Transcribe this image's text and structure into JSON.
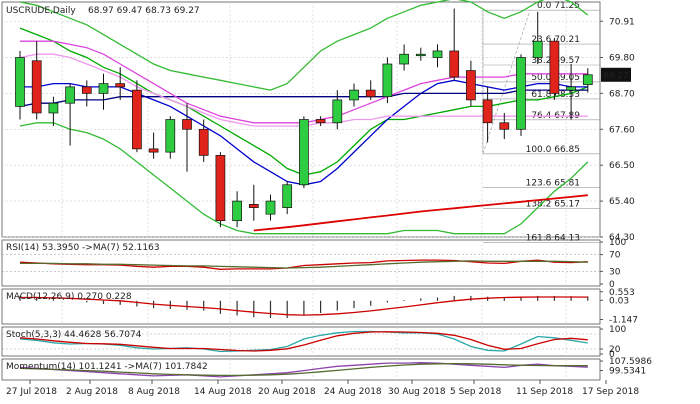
{
  "chart_data": {
    "type": "candlestick",
    "symbol": "USCRUDE",
    "timeframe": "Daily",
    "ohlc_header": [
      "68.97",
      "69.47",
      "68.73",
      "69.27"
    ],
    "last_price": 69.27,
    "price_range": [
      64.3,
      71.5
    ],
    "price_ticks": [
      70.91,
      69.8,
      68.7,
      67.6,
      66.5,
      65.4,
      64.3
    ],
    "x_labels": [
      "27 Jul 2018",
      "2 Aug 2018",
      "8 Aug 2018",
      "14 Aug 2018",
      "20 Aug 2018",
      "24 Aug 2018",
      "30 Aug 2018",
      "5 Sep 2018",
      "11 Sep 2018",
      "17 Sep 2018"
    ],
    "candles": [
      {
        "o": 68.3,
        "h": 70.0,
        "l": 67.9,
        "c": 69.8
      },
      {
        "o": 69.7,
        "h": 70.3,
        "l": 67.9,
        "c": 68.1
      },
      {
        "o": 68.1,
        "h": 68.6,
        "l": 67.7,
        "c": 68.4
      },
      {
        "o": 68.4,
        "h": 69.0,
        "l": 67.1,
        "c": 68.9
      },
      {
        "o": 68.9,
        "h": 69.1,
        "l": 68.3,
        "c": 68.7
      },
      {
        "o": 68.7,
        "h": 69.3,
        "l": 68.2,
        "c": 69.0
      },
      {
        "o": 69.0,
        "h": 69.5,
        "l": 68.5,
        "c": 68.9
      },
      {
        "o": 68.8,
        "h": 69.1,
        "l": 66.9,
        "c": 67.0
      },
      {
        "o": 67.0,
        "h": 67.5,
        "l": 66.7,
        "c": 66.9
      },
      {
        "o": 66.9,
        "h": 68.0,
        "l": 66.7,
        "c": 67.9
      },
      {
        "o": 67.9,
        "h": 68.4,
        "l": 66.3,
        "c": 67.6
      },
      {
        "o": 67.6,
        "h": 67.9,
        "l": 66.6,
        "c": 66.8
      },
      {
        "o": 66.8,
        "h": 66.9,
        "l": 64.6,
        "c": 64.8
      },
      {
        "o": 64.8,
        "h": 65.7,
        "l": 64.6,
        "c": 65.4
      },
      {
        "o": 65.3,
        "h": 65.9,
        "l": 64.8,
        "c": 65.2
      },
      {
        "o": 65.0,
        "h": 65.6,
        "l": 64.8,
        "c": 65.4
      },
      {
        "o": 65.2,
        "h": 66.0,
        "l": 65.0,
        "c": 65.9
      },
      {
        "o": 65.9,
        "h": 68.0,
        "l": 65.8,
        "c": 67.9
      },
      {
        "o": 67.9,
        "h": 68.0,
        "l": 67.7,
        "c": 67.8
      },
      {
        "o": 67.8,
        "h": 68.8,
        "l": 67.6,
        "c": 68.5
      },
      {
        "o": 68.5,
        "h": 69.0,
        "l": 68.3,
        "c": 68.8
      },
      {
        "o": 68.8,
        "h": 69.1,
        "l": 68.5,
        "c": 68.6
      },
      {
        "o": 68.6,
        "h": 69.8,
        "l": 68.4,
        "c": 69.6
      },
      {
        "o": 69.6,
        "h": 70.2,
        "l": 69.4,
        "c": 69.9
      },
      {
        "o": 69.9,
        "h": 70.1,
        "l": 69.7,
        "c": 69.9
      },
      {
        "o": 69.8,
        "h": 70.2,
        "l": 69.5,
        "c": 70.0
      },
      {
        "o": 70.0,
        "h": 71.3,
        "l": 69.1,
        "c": 69.2
      },
      {
        "o": 69.4,
        "h": 69.7,
        "l": 68.3,
        "c": 68.5
      },
      {
        "o": 68.5,
        "h": 68.9,
        "l": 67.2,
        "c": 67.8
      },
      {
        "o": 67.8,
        "h": 68.1,
        "l": 67.3,
        "c": 67.6
      },
      {
        "o": 67.6,
        "h": 69.9,
        "l": 67.4,
        "c": 69.8
      },
      {
        "o": 69.8,
        "h": 71.2,
        "l": 69.6,
        "c": 70.3
      },
      {
        "o": 70.3,
        "h": 70.4,
        "l": 68.5,
        "c": 68.7
      },
      {
        "o": 68.8,
        "h": 69.6,
        "l": 67.9,
        "c": 68.9
      },
      {
        "o": 68.97,
        "h": 69.47,
        "l": 68.73,
        "c": 69.27
      }
    ],
    "overlays": [
      {
        "color": "#00aa00",
        "values": [
          70.7,
          70.5,
          70.3,
          70.0,
          69.8,
          69.5,
          69.3,
          69.0,
          68.7,
          68.5,
          68.3,
          68.0,
          67.7,
          67.4,
          67.1,
          66.8,
          66.4,
          66.2,
          66.3,
          66.6,
          67.1,
          67.6,
          67.9,
          67.9,
          68.0,
          68.1,
          68.2,
          68.3,
          68.3,
          68.4,
          68.5,
          68.5,
          68.6,
          68.7,
          68.9
        ]
      },
      {
        "color": "#0000cc",
        "values": [
          68.9,
          68.9,
          69.0,
          69.0,
          68.9,
          68.9,
          68.9,
          68.7,
          68.5,
          68.3,
          68.0,
          67.7,
          67.4,
          67.0,
          66.6,
          66.3,
          66.0,
          65.9,
          66.0,
          66.4,
          66.9,
          67.4,
          67.9,
          68.3,
          68.7,
          69.0,
          69.1,
          69.0,
          68.9,
          68.8,
          68.9,
          69.0,
          69.0,
          68.9,
          68.9
        ]
      },
      {
        "color": "#000080",
        "values": [
          68.3,
          68.4,
          68.4,
          68.5,
          68.5,
          68.5,
          68.6,
          68.6,
          68.6,
          68.6,
          68.6,
          68.6,
          68.6,
          68.6,
          68.6,
          68.6,
          68.6,
          68.6,
          68.6,
          68.6,
          68.6,
          68.6,
          68.6,
          68.7,
          68.7,
          68.7,
          68.7,
          68.7,
          68.7,
          68.7,
          68.8,
          68.8,
          68.8,
          68.8,
          68.8
        ]
      },
      {
        "color": "#dd44dd",
        "values": [
          70.3,
          70.3,
          70.3,
          70.2,
          70.1,
          69.9,
          69.6,
          69.3,
          69.0,
          68.7,
          68.4,
          68.2,
          68.0,
          67.9,
          67.8,
          67.8,
          67.8,
          67.8,
          67.9,
          68.0,
          68.2,
          68.4,
          68.6,
          68.8,
          69.0,
          69.1,
          69.2,
          69.2,
          69.2,
          69.2,
          69.3,
          69.3,
          69.3,
          69.3,
          69.3
        ]
      },
      {
        "color": "#ee99ee",
        "values": [
          69.8,
          69.9,
          69.9,
          69.8,
          69.6,
          69.4,
          69.2,
          68.9,
          68.7,
          68.5,
          68.3,
          68.1,
          67.9,
          67.8,
          67.7,
          67.7,
          67.7,
          67.7,
          67.8,
          67.8,
          67.9,
          67.9,
          68.0,
          68.0,
          68.0,
          68.0,
          68.0,
          68.0,
          68.0,
          68.0,
          68.0,
          68.0,
          68.0,
          68.0,
          68.0
        ]
      },
      {
        "color": "#33bb33",
        "values": [
          71.5,
          71.4,
          71.2,
          71.0,
          70.8,
          70.5,
          70.2,
          69.9,
          69.6,
          69.4,
          69.3,
          69.2,
          69.1,
          69.0,
          68.9,
          68.8,
          69.0,
          69.5,
          70.0,
          70.3,
          70.5,
          70.7,
          71.0,
          71.2,
          71.4,
          71.5,
          71.6,
          71.5,
          71.2,
          71.0,
          71.2,
          71.5,
          71.7,
          71.5,
          71.1
        ]
      },
      {
        "color": "#33bb33",
        "values": [
          67.7,
          67.8,
          67.8,
          67.6,
          67.5,
          67.3,
          67.0,
          66.6,
          66.2,
          65.8,
          65.4,
          65.0,
          64.7,
          64.5,
          64.4,
          64.4,
          64.4,
          64.4,
          64.4,
          64.4,
          64.4,
          64.4,
          64.4,
          64.5,
          64.5,
          64.5,
          64.4,
          64.4,
          64.4,
          64.4,
          64.7,
          65.2,
          65.7,
          66.1,
          66.6
        ]
      },
      {
        "color": "#dd0000",
        "values": [
          null,
          null,
          null,
          null,
          null,
          null,
          null,
          null,
          null,
          null,
          null,
          null,
          null,
          null,
          64.5,
          64.55,
          64.6,
          64.66,
          64.72,
          64.78,
          64.84,
          64.9,
          64.96,
          65.02,
          65.08,
          65.13,
          65.18,
          65.23,
          65.28,
          65.33,
          65.38,
          65.43,
          65.48,
          65.53,
          65.58
        ]
      }
    ],
    "fibonacci": [
      {
        "label": "0.0 71.25",
        "value": 71.25
      },
      {
        "label": "23.6 70.21",
        "value": 70.21
      },
      {
        "label": "38.2 69.57",
        "value": 69.57
      },
      {
        "label": "50.0 69.05",
        "value": 69.05
      },
      {
        "label": "61.8 68.53",
        "value": 68.53
      },
      {
        "label": "76.4 67.89",
        "value": 67.89
      },
      {
        "label": "100.0 66.85",
        "value": 66.85
      },
      {
        "label": "123.6 65.81",
        "value": 65.81
      },
      {
        "label": "138.2 65.17",
        "value": 65.17
      },
      {
        "label": "161.8 64.13",
        "value": 64.13
      }
    ],
    "indicators": [
      {
        "id": "rsi",
        "label": "RSI(14) 53.3950 ->MA(7) 52.1163",
        "range": [
          0,
          100
        ],
        "ticks": [
          "100",
          "70",
          "30",
          "0"
        ],
        "tick_values": [
          100,
          70,
          30,
          0
        ],
        "levels": [
          70,
          30
        ],
        "lines": [
          {
            "color": "#cc0000",
            "values": [
              52,
              50,
              48,
              47,
              46,
              46,
              45,
              42,
              40,
              42,
              42,
              40,
              35,
              36,
              36,
              36,
              38,
              44,
              46,
              48,
              50,
              51,
              55,
              56,
              57,
              57,
              56,
              53,
              50,
              49,
              54,
              57,
              52,
              51,
              53
            ]
          },
          {
            "color": "#556b2f",
            "values": [
              49,
              49,
              49,
              48,
              48,
              47,
              47,
              46,
              45,
              44,
              43,
              43,
              42,
              41,
              40,
              39,
              38,
              39,
              40,
              42,
              44,
              46,
              48,
              50,
              52,
              53,
              54,
              55,
              54,
              54,
              54,
              54,
              54,
              53,
              52
            ]
          }
        ]
      },
      {
        "id": "macd",
        "label": "MACD(12,26,9) 0.270 0.228",
        "range": [
          -1.3,
          0.6
        ],
        "ticks": [
          "0.553",
          "0.03",
          "-1.147"
        ],
        "tick_values": [
          0.553,
          0.03,
          -1.147
        ],
        "histogram": [
          0.3,
          0.25,
          0.1,
          0.0,
          -0.1,
          -0.2,
          -0.25,
          -0.35,
          -0.45,
          -0.5,
          -0.55,
          -0.6,
          -0.8,
          -0.9,
          -1.0,
          -1.05,
          -1.05,
          -0.9,
          -0.75,
          -0.6,
          -0.45,
          -0.3,
          -0.1,
          0.05,
          0.15,
          0.2,
          0.3,
          0.3,
          0.25,
          0.2,
          0.25,
          0.3,
          0.3,
          0.28,
          0.27
        ],
        "lines": [
          {
            "color": "#cc0000",
            "values": [
              0.2,
              0.2,
              0.18,
              0.15,
              0.1,
              0.05,
              0.0,
              -0.1,
              -0.2,
              -0.28,
              -0.35,
              -0.42,
              -0.5,
              -0.6,
              -0.7,
              -0.78,
              -0.85,
              -0.88,
              -0.85,
              -0.8,
              -0.72,
              -0.62,
              -0.5,
              -0.38,
              -0.25,
              -0.12,
              0.0,
              0.1,
              0.16,
              0.2,
              0.22,
              0.23,
              0.23,
              0.23,
              0.228
            ]
          }
        ]
      },
      {
        "id": "stoch",
        "label": "Stoch(5,3,3) 44.4628 56.7074",
        "range": [
          0,
          100
        ],
        "ticks": [
          "100",
          "20",
          "0"
        ],
        "tick_values": [
          100,
          20,
          0
        ],
        "levels": [
          80,
          20
        ],
        "lines": [
          {
            "color": "#2aa8a8",
            "values": [
              60,
              55,
              45,
              40,
              42,
              40,
              35,
              25,
              20,
              22,
              25,
              20,
              10,
              12,
              15,
              18,
              30,
              60,
              75,
              85,
              90,
              90,
              88,
              85,
              85,
              80,
              60,
              30,
              15,
              12,
              40,
              70,
              65,
              55,
              44
            ]
          },
          {
            "color": "#cc0000",
            "values": [
              65,
              60,
              53,
              47,
              42,
              41,
              39,
              33,
              27,
              22,
              22,
              22,
              18,
              14,
              12,
              15,
              21,
              36,
              55,
              73,
              83,
              88,
              89,
              88,
              86,
              83,
              75,
              58,
              35,
              19,
              22,
              41,
              58,
              63,
              57
            ]
          }
        ]
      },
      {
        "id": "momentum",
        "label": "Momentum(14) 101.1241 ->MA(7) 101.7842",
        "range": [
          96,
          104
        ],
        "ticks": [
          "107.5986",
          "99.5341"
        ],
        "tick_values": [
          107.5986,
          99.5341
        ],
        "lines": [
          {
            "color": "#8e44ad",
            "values": [
              101,
              100.5,
              100,
              99.5,
              99,
              98.5,
              98,
              97.5,
              97,
              97.2,
              97.5,
              97,
              96.5,
              97,
              97.5,
              98,
              98.5,
              99.5,
              100.5,
              101.5,
              102,
              102.5,
              103,
              103,
              103.2,
              103,
              102.5,
              102,
              101.5,
              101,
              102,
              102.5,
              101.8,
              101.5,
              101.1
            ]
          },
          {
            "color": "#556b2f",
            "values": [
              100.5,
              100.3,
              100,
              99.8,
              99.5,
              99.2,
              98.8,
              98.4,
              98,
              97.7,
              97.5,
              97.3,
              97.2,
              97.2,
              97.3,
              97.5,
              97.8,
              98.3,
              98.9,
              99.6,
              100.3,
              101,
              101.6,
              102.1,
              102.5,
              102.7,
              102.8,
              102.7,
              102.5,
              102.2,
              102,
              101.9,
              101.8,
              101.8,
              101.8
            ]
          }
        ]
      }
    ]
  }
}
